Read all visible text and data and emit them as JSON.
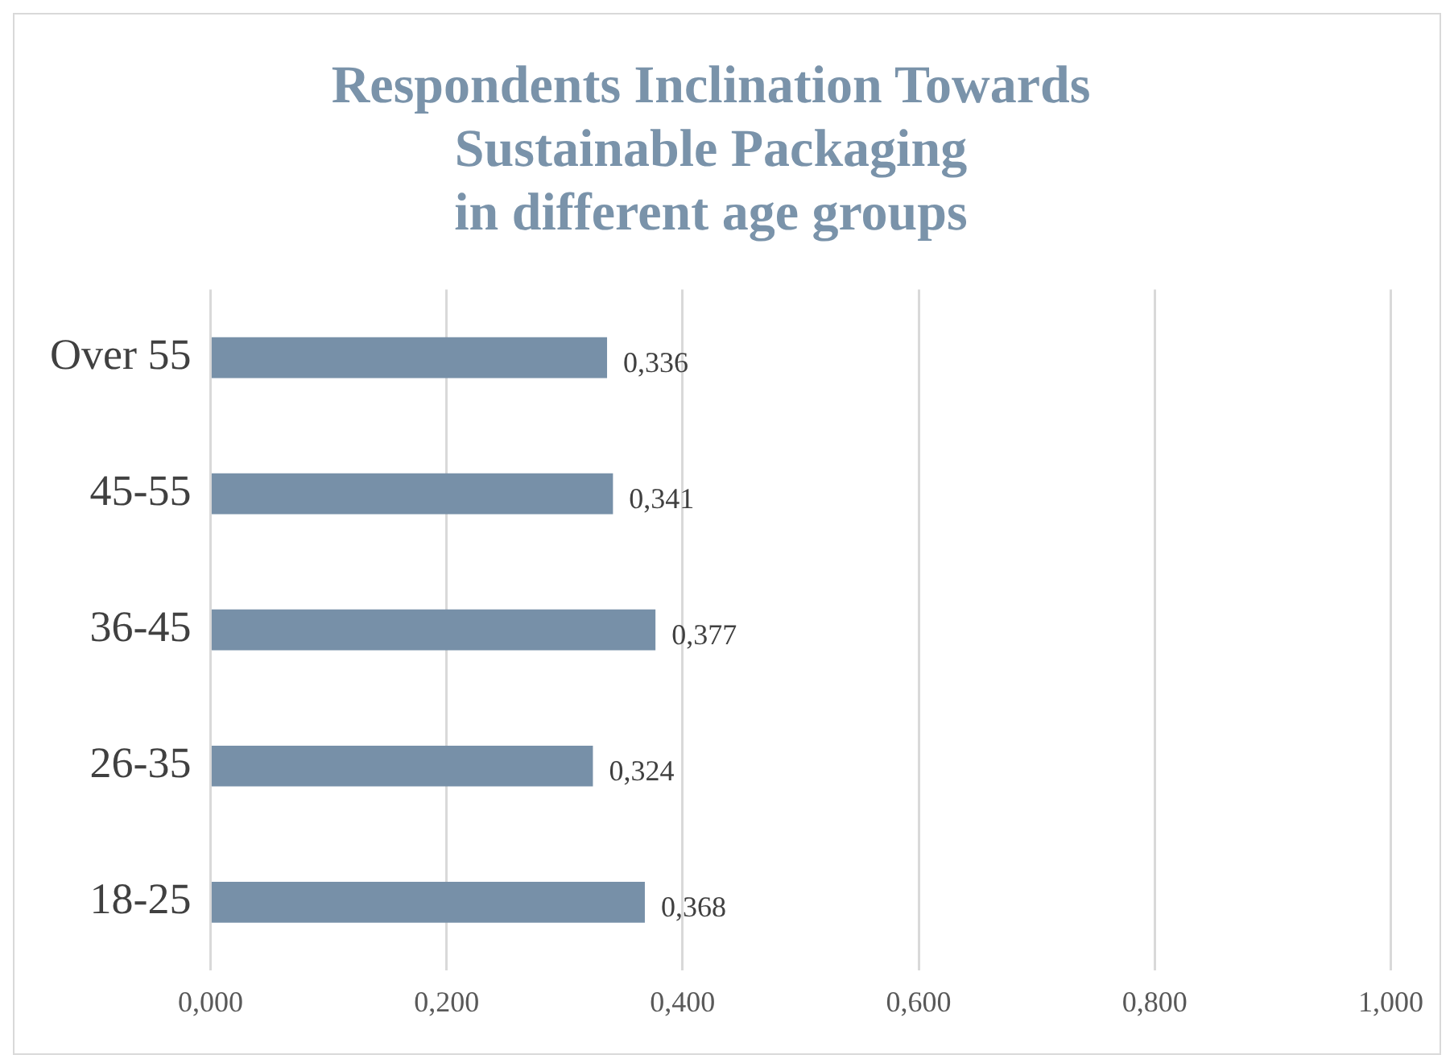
{
  "chart_data": {
    "type": "bar",
    "orientation": "horizontal",
    "title": "Respondents Inclination Towards\nSustainable Packaging\nin different age groups",
    "categories": [
      "Over 55",
      "45-55",
      "36-45",
      "26-35",
      "18-25"
    ],
    "values": [
      0.336,
      0.341,
      0.377,
      0.324,
      0.368
    ],
    "value_labels": [
      "0,336",
      "0,341",
      "0,377",
      "0,324",
      "0,368"
    ],
    "color": "#7790a8",
    "xlim": [
      0,
      1
    ],
    "xticks": [
      {
        "value": 0,
        "label": "0,000"
      },
      {
        "value": 0.2,
        "label": "0,200"
      },
      {
        "value": 0.4,
        "label": "0,400"
      },
      {
        "value": 0.6,
        "label": "0,600"
      },
      {
        "value": 0.8,
        "label": "0,800"
      },
      {
        "value": 1,
        "label": "1,000"
      }
    ],
    "grid": "x",
    "legend": false
  }
}
